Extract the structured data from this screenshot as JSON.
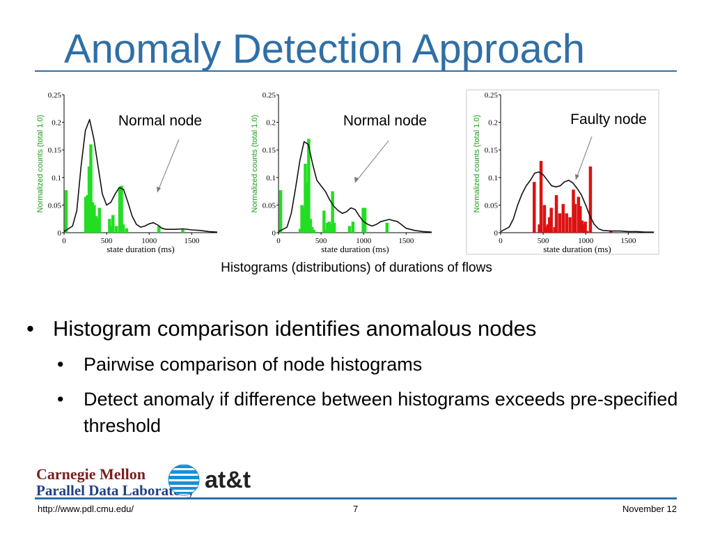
{
  "slide": {
    "title": "Anomaly Detection Approach",
    "caption": "Histograms (distributions) of durations of  flows",
    "bullets": [
      {
        "text": "Histogram comparison identifies anomalous nodes",
        "sub": [
          "Pairwise comparison of node histograms",
          "Detect anomaly if difference between histograms exceeds pre-specified threshold"
        ]
      }
    ],
    "bullet_glyph": "•"
  },
  "logos": {
    "cmu_line1": "Carnegie Mellon",
    "cmu_line2": "Parallel Data Laboratory",
    "att": "at&t"
  },
  "footer": {
    "url": "http://www.pdl.cmu.edu/",
    "page": "7",
    "date": "November 12"
  },
  "chart_data": [
    {
      "type": "bar",
      "annotation": "Normal node",
      "xlabel": "state duration (ms)",
      "ylabel": "Normalized counts (total 1.0)",
      "xlim": [
        0,
        1800
      ],
      "ylim": [
        0,
        0.25
      ],
      "xticks": [
        0,
        500,
        1000,
        1500
      ],
      "yticks": [
        0,
        0.05,
        0.1,
        0.15,
        0.2,
        0.25
      ],
      "ytick_labels": [
        "0",
        "0.05",
        "0.1",
        "0.15",
        "0.2",
        "0.25"
      ],
      "color": "#22dd22",
      "x": [
        25,
        255,
        275,
        295,
        315,
        335,
        355,
        375,
        395,
        415,
        535,
        555,
        575,
        615,
        655,
        675,
        695,
        735,
        1115,
        1395
      ],
      "values": [
        0.077,
        0.065,
        0.068,
        0.12,
        0.16,
        0.055,
        0.05,
        0.03,
        0.025,
        0.045,
        0.025,
        0.012,
        0.032,
        0.012,
        0.08,
        0.085,
        0.015,
        0.008,
        0.012,
        0.006
      ],
      "curve_x": [
        0,
        100,
        150,
        200,
        250,
        300,
        350,
        400,
        450,
        500,
        550,
        600,
        650,
        700,
        750,
        800,
        850,
        900,
        950,
        1000,
        1050,
        1100,
        1150,
        1200,
        1300,
        1400,
        1500,
        1600,
        1700,
        1800
      ],
      "curve_y": [
        0.002,
        0.012,
        0.04,
        0.12,
        0.185,
        0.205,
        0.17,
        0.12,
        0.07,
        0.05,
        0.055,
        0.07,
        0.082,
        0.078,
        0.055,
        0.03,
        0.015,
        0.01,
        0.012,
        0.016,
        0.018,
        0.014,
        0.008,
        0.006,
        0.006,
        0.007,
        0.005,
        0.004,
        0.002,
        0.001
      ]
    },
    {
      "type": "bar",
      "annotation": "Normal node",
      "xlabel": "state duration (ms)",
      "ylabel": "Normalized counts (total 1.0)",
      "xlim": [
        0,
        1800
      ],
      "ylim": [
        0,
        0.25
      ],
      "xticks": [
        0,
        500,
        1000,
        1500
      ],
      "yticks": [
        0,
        0.05,
        0.1,
        0.15,
        0.2,
        0.25
      ],
      "ytick_labels": [
        "0",
        "0.05",
        "0.1",
        "0.15",
        "0.2",
        "0.25"
      ],
      "color": "#22dd22",
      "x": [
        25,
        255,
        275,
        295,
        315,
        335,
        355,
        375,
        395,
        415,
        535,
        555,
        575,
        595,
        615,
        635,
        655,
        835,
        875,
        995,
        1015,
        1275
      ],
      "values": [
        0.077,
        0.007,
        0.05,
        0.045,
        0.125,
        0.09,
        0.17,
        0.025,
        0.01,
        0.005,
        0.04,
        0.005,
        0.018,
        0.02,
        0.015,
        0.075,
        0.018,
        0.012,
        0.02,
        0.045,
        0.045,
        0.018
      ],
      "curve_x": [
        0,
        100,
        150,
        200,
        250,
        300,
        350,
        400,
        450,
        500,
        550,
        600,
        650,
        700,
        750,
        800,
        850,
        900,
        950,
        1000,
        1050,
        1100,
        1150,
        1200,
        1300,
        1400,
        1500,
        1600,
        1700,
        1800
      ],
      "curve_y": [
        0.002,
        0.01,
        0.035,
        0.08,
        0.13,
        0.165,
        0.16,
        0.125,
        0.095,
        0.085,
        0.075,
        0.06,
        0.048,
        0.04,
        0.035,
        0.038,
        0.045,
        0.042,
        0.03,
        0.02,
        0.015,
        0.012,
        0.015,
        0.02,
        0.024,
        0.02,
        0.008,
        0.004,
        0.002,
        0.001
      ]
    },
    {
      "type": "bar",
      "annotation": "Faulty node",
      "xlabel": "state duration (ms)",
      "ylabel": "Normalized counts (total 1.0)",
      "xlim": [
        0,
        1800
      ],
      "ylim": [
        0,
        0.25
      ],
      "xticks": [
        0,
        500,
        1000,
        1500
      ],
      "yticks": [
        0,
        0.05,
        0.1,
        0.15,
        0.2,
        0.25
      ],
      "ytick_labels": [
        "0",
        "0.05",
        "0.1",
        "0.15",
        "0.2",
        "0.25"
      ],
      "color": "#dd1111",
      "x": [
        395,
        455,
        475,
        515,
        535,
        555,
        575,
        595,
        635,
        655,
        695,
        735,
        775,
        815,
        855,
        875,
        915,
        935,
        955,
        975,
        995,
        1015,
        1055,
        1295
      ],
      "values": [
        0.092,
        0.015,
        0.13,
        0.05,
        0.01,
        0.015,
        0.028,
        0.045,
        0.01,
        0.068,
        0.035,
        0.052,
        0.035,
        0.028,
        0.078,
        0.052,
        0.065,
        0.048,
        0.022,
        0.015,
        0.02,
        0.003,
        0.12,
        0.003
      ],
      "curve_x": [
        0,
        100,
        150,
        200,
        250,
        300,
        350,
        400,
        450,
        500,
        550,
        600,
        650,
        700,
        750,
        800,
        850,
        900,
        950,
        1000,
        1050,
        1100,
        1150,
        1200,
        1300,
        1400,
        1500,
        1600,
        1700,
        1800
      ],
      "curve_y": [
        0.002,
        0.01,
        0.025,
        0.05,
        0.07,
        0.085,
        0.095,
        0.108,
        0.11,
        0.105,
        0.095,
        0.085,
        0.083,
        0.085,
        0.092,
        0.095,
        0.09,
        0.08,
        0.068,
        0.05,
        0.03,
        0.015,
        0.007,
        0.004,
        0.003,
        0.003,
        0.002,
        0.002,
        0.001,
        0.001
      ]
    }
  ]
}
